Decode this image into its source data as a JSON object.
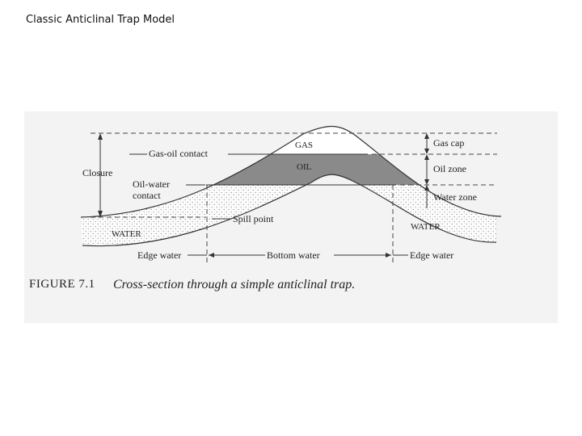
{
  "slide": {
    "title": "Classic Anticlinal Trap Model"
  },
  "figure": {
    "labels": {
      "gas": "GAS",
      "oil": "OIL",
      "water_left": "WATER",
      "water_right": "WATER",
      "gas_cap": "Gas cap",
      "oil_zone": "Oil zone",
      "water_zone": "Water zone",
      "gas_oil_contact": "Gas-oil contact",
      "closure": "Closure",
      "oil_water_contact_1": "Oil-water",
      "oil_water_contact_2": "contact",
      "spill_point": "Spill point",
      "edge_water_left": "Edge water",
      "bottom_water": "Bottom water",
      "edge_water_right": "Edge water"
    },
    "caption": {
      "number": "FIGURE 7.1",
      "text": "Cross-section through a simple anticlinal trap."
    },
    "colors": {
      "oil_fill": "#8a8a8a",
      "background": "#f3f3f3",
      "line": "#333333"
    }
  }
}
